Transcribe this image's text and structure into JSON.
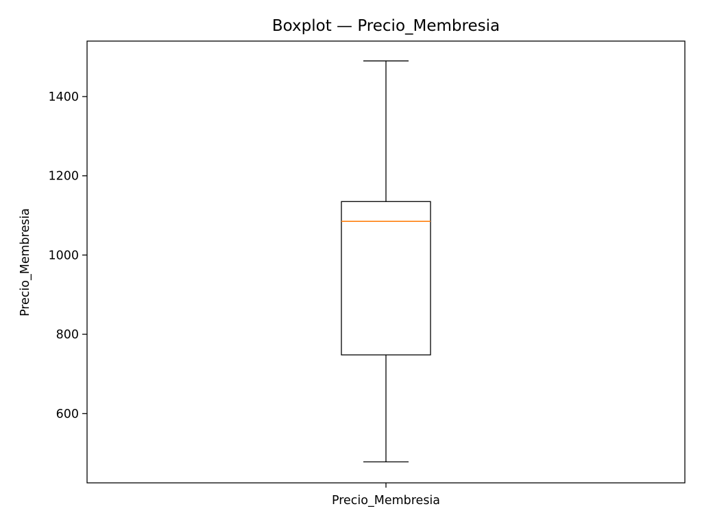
{
  "chart_data": {
    "type": "boxplot",
    "title": "Boxplot — Precio_Membresia",
    "xlabel": "",
    "ylabel": "Precio_Membresia",
    "categories": [
      "Precio_Membresia"
    ],
    "ylim": [
      425,
      1540
    ],
    "yticks": [
      600,
      800,
      1000,
      1200,
      1400
    ],
    "grid": false,
    "series": [
      {
        "whisker_low": 478,
        "q1": 748,
        "median": 1085,
        "q3": 1135,
        "whisker_high": 1490,
        "outliers": []
      }
    ],
    "colors": {
      "box": "#000000",
      "median": "#ff7f0e"
    }
  }
}
